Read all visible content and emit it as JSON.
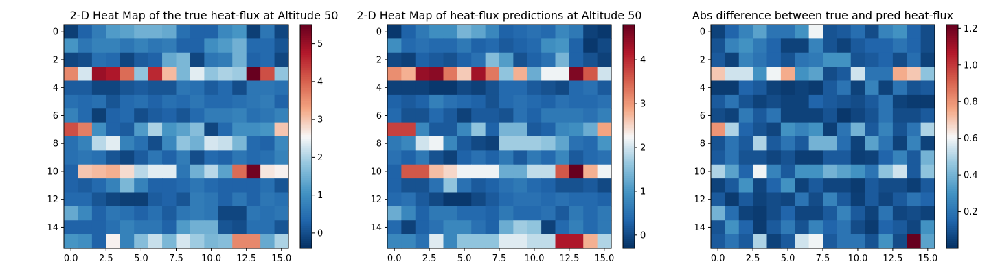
{
  "chart_data": [
    {
      "type": "heatmap",
      "title": "2-D Heat Map of the true heat-flux at Altitude 50",
      "colormap": "RdBu_r",
      "vmin": -0.4,
      "vmax": 5.5,
      "x_ticks": [
        "0.0",
        "2.5",
        "5.0",
        "7.5",
        "10.0",
        "12.5",
        "15.0"
      ],
      "x_tick_values": [
        0,
        2.5,
        5,
        7.5,
        10,
        12.5,
        15
      ],
      "y_ticks": [
        "0",
        "2",
        "4",
        "6",
        "8",
        "10",
        "12",
        "14"
      ],
      "y_tick_values": [
        0,
        2,
        4,
        6,
        8,
        10,
        12,
        14
      ],
      "colorbar_ticks": [
        "0",
        "1",
        "2",
        "3",
        "4",
        "5"
      ],
      "colorbar_tick_values": [
        0,
        1,
        2,
        3,
        4,
        5
      ],
      "matrix": [
        [
          -0.2,
          0.3,
          0.7,
          1.2,
          1.3,
          1.5,
          1.5,
          1.4,
          0.5,
          0.3,
          0.3,
          0.9,
          1.1,
          -0.2,
          0.6,
          -0.1
        ],
        [
          1.1,
          0.6,
          0.8,
          0.8,
          0.6,
          0.8,
          0.6,
          0.7,
          0.3,
          0.3,
          1.0,
          1.2,
          1.5,
          0.4,
          0.4,
          0.1
        ],
        [
          -0.1,
          0.0,
          0.5,
          0.4,
          -0.1,
          0.2,
          0.3,
          1.4,
          1.6,
          -0.1,
          0.6,
          0.7,
          1.5,
          0.3,
          0.4,
          -0.1
        ],
        [
          3.6,
          2.3,
          5.0,
          4.8,
          3.9,
          1.8,
          4.6,
          3.1,
          1.6,
          2.4,
          1.8,
          2.0,
          1.9,
          5.5,
          4.2,
          1.8
        ],
        [
          0.2,
          0.2,
          -0.1,
          -0.1,
          0.1,
          0.2,
          0.1,
          0.1,
          0.6,
          0.5,
          0.2,
          0.4,
          0.0,
          0.6,
          0.6,
          0.5
        ],
        [
          0.5,
          0.4,
          0.5,
          0.1,
          0.4,
          0.5,
          0.3,
          0.5,
          0.4,
          0.6,
          0.4,
          0.4,
          0.5,
          0.6,
          0.7,
          0.3
        ],
        [
          0.8,
          0.4,
          -0.2,
          0.3,
          0.4,
          0.0,
          0.2,
          0.3,
          0.1,
          0.4,
          0.7,
          0.7,
          0.8,
          0.5,
          0.6,
          0.8
        ],
        [
          4.2,
          3.7,
          1.0,
          0.3,
          0.2,
          1.2,
          2.0,
          1.1,
          1.3,
          1.7,
          -0.1,
          0.4,
          1.0,
          1.0,
          1.1,
          3.0
        ],
        [
          0.5,
          0.8,
          2.1,
          2.4,
          0.8,
          0.5,
          0.0,
          0.9,
          1.8,
          1.5,
          2.3,
          2.2,
          1.6,
          0.4,
          0.3,
          0.9
        ],
        [
          0.5,
          0.6,
          0.5,
          0.1,
          -0.1,
          0.2,
          0.6,
          0.3,
          0.7,
          0.0,
          0.4,
          0.3,
          0.6,
          0.4,
          0.5,
          0.8
        ],
        [
          0.3,
          3.0,
          3.1,
          3.2,
          2.8,
          2.1,
          2.4,
          2.4,
          0.6,
          1.5,
          2.1,
          1.3,
          3.9,
          5.4,
          2.7,
          2.6
        ],
        [
          0.3,
          0.2,
          0.4,
          0.8,
          1.6,
          0.8,
          0.3,
          0.3,
          0.4,
          0.6,
          0.4,
          0.3,
          0.3,
          0.3,
          0.5,
          0.1
        ],
        [
          0.4,
          0.4,
          0.1,
          -0.1,
          -0.2,
          -0.2,
          0.2,
          0.3,
          0.1,
          0.7,
          0.6,
          0.3,
          0.6,
          0.3,
          0.6,
          0.5
        ],
        [
          1.4,
          0.9,
          0.3,
          0.6,
          0.5,
          0.3,
          0.5,
          0.2,
          0.6,
          0.7,
          0.6,
          -0.1,
          -0.1,
          0.6,
          0.5,
          0.6
        ],
        [
          0.3,
          0.3,
          0.3,
          0.5,
          0.8,
          0.6,
          0.6,
          0.3,
          1.2,
          1.5,
          1.5,
          0.1,
          0.0,
          0.5,
          0.5,
          0.1
        ],
        [
          1.1,
          1.0,
          0.3,
          2.6,
          0.8,
          1.7,
          2.2,
          1.6,
          2.3,
          1.9,
          1.6,
          1.7,
          3.6,
          3.6,
          1.4,
          2.0
        ]
      ]
    },
    {
      "type": "heatmap",
      "title": "2-D Heat Map of heat-flux predictions at Altitude 50",
      "colormap": "RdBu_r",
      "vmin": -0.3,
      "vmax": 4.8,
      "x_ticks": [
        "0.0",
        "2.5",
        "5.0",
        "7.5",
        "10.0",
        "12.5",
        "15.0"
      ],
      "x_tick_values": [
        0,
        2.5,
        5,
        7.5,
        10,
        12.5,
        15
      ],
      "y_ticks": [
        "0",
        "2",
        "4",
        "6",
        "8",
        "10",
        "12",
        "14"
      ],
      "y_tick_values": [
        0,
        2,
        4,
        6,
        8,
        10,
        12,
        14
      ],
      "colorbar_ticks": [
        "0",
        "1",
        "2",
        "3",
        "4"
      ],
      "colorbar_tick_values": [
        0,
        1,
        2,
        3,
        4
      ],
      "matrix": [
        [
          -0.2,
          0.3,
          0.6,
          0.9,
          0.9,
          1.4,
          1.2,
          0.8,
          0.3,
          0.4,
          0.5,
          0.4,
          0.8,
          0.6,
          -0.1,
          -0.2
        ],
        [
          0.9,
          0.4,
          0.5,
          0.4,
          0.4,
          0.6,
          0.3,
          0.4,
          0.2,
          0.3,
          0.4,
          0.9,
          1.0,
          0.3,
          -0.2,
          0.0
        ],
        [
          0.0,
          -0.1,
          0.3,
          0.2,
          0.1,
          0.3,
          0.5,
          1.5,
          1.1,
          0.1,
          0.3,
          0.5,
          1.4,
          0.3,
          0.1,
          -0.1
        ],
        [
          3.1,
          2.8,
          4.4,
          4.5,
          3.3,
          2.6,
          4.3,
          3.3,
          1.6,
          2.8,
          1.3,
          2.2,
          2.2,
          4.6,
          3.6,
          2.0
        ],
        [
          -0.1,
          -0.1,
          -0.1,
          -0.2,
          -0.2,
          0.0,
          -0.1,
          0.1,
          0.4,
          0.4,
          0.2,
          0.1,
          0.0,
          0.4,
          0.5,
          0.2
        ],
        [
          0.3,
          0.2,
          0.3,
          0.7,
          0.5,
          0.4,
          0.3,
          0.1,
          0.4,
          0.5,
          0.4,
          0.3,
          0.5,
          0.4,
          0.4,
          0.5
        ],
        [
          0.4,
          0.1,
          0.1,
          0.4,
          0.2,
          -0.1,
          0.2,
          0.2,
          0.1,
          0.5,
          0.3,
          0.6,
          0.6,
          0.6,
          0.5,
          0.7
        ],
        [
          3.8,
          3.8,
          0.8,
          0.2,
          0.2,
          0.8,
          1.6,
          0.3,
          1.4,
          1.4,
          0.2,
          0.3,
          0.8,
          0.9,
          1.3,
          2.9
        ],
        [
          0.6,
          0.8,
          2.0,
          2.2,
          0.8,
          0.2,
          0.0,
          -0.1,
          1.7,
          1.7,
          1.7,
          1.6,
          1.2,
          0.5,
          0.4,
          1.0
        ],
        [
          0.5,
          0.3,
          0.6,
          0.1,
          -0.1,
          0.3,
          0.5,
          0.3,
          0.6,
          0.2,
          0.6,
          0.4,
          0.8,
          0.2,
          0.4,
          0.5
        ],
        [
          0.3,
          3.6,
          3.6,
          2.7,
          2.5,
          2.2,
          2.2,
          2.2,
          1.3,
          1.3,
          1.9,
          1.9,
          3.6,
          4.8,
          2.8,
          2.2
        ],
        [
          0.3,
          0.1,
          0.1,
          0.5,
          1.6,
          0.5,
          0.2,
          0.3,
          0.5,
          0.6,
          0.4,
          0.3,
          0.1,
          0.1,
          0.2,
          0.0
        ],
        [
          0.4,
          0.5,
          0.2,
          0.0,
          -0.2,
          -0.2,
          0.0,
          0.2,
          0.4,
          0.5,
          0.5,
          0.4,
          0.5,
          0.4,
          0.4,
          0.3
        ],
        [
          1.3,
          0.8,
          0.3,
          0.6,
          0.6,
          0.4,
          0.4,
          0.3,
          0.6,
          0.4,
          0.4,
          0.5,
          0.2,
          0.6,
          0.4,
          0.6
        ],
        [
          0.4,
          -0.1,
          0.3,
          0.5,
          0.8,
          0.8,
          0.5,
          0.3,
          1.3,
          1.7,
          1.6,
          -0.1,
          0.4,
          0.7,
          0.4,
          0.6
        ],
        [
          0.8,
          0.8,
          0.5,
          2.1,
          0.8,
          1.6,
          1.6,
          1.6,
          2.1,
          2.1,
          1.9,
          1.9,
          4.2,
          4.2,
          2.8,
          1.8
        ]
      ]
    },
    {
      "type": "heatmap",
      "title": "Abs difference between true and pred heat-flux",
      "colormap": "RdBu_r",
      "vmin": 0.0,
      "vmax": 1.22,
      "x_ticks": [
        "0.0",
        "2.5",
        "5.0",
        "7.5",
        "10.0",
        "12.5",
        "15.0"
      ],
      "x_tick_values": [
        0,
        2.5,
        5,
        7.5,
        10,
        12.5,
        15
      ],
      "y_ticks": [
        "0",
        "2",
        "4",
        "6",
        "8",
        "10",
        "12",
        "14"
      ],
      "y_tick_values": [
        0,
        2,
        4,
        6,
        8,
        10,
        12,
        14
      ],
      "colorbar_ticks": [
        "0.2",
        "0.4",
        "0.6",
        "0.8",
        "1.0",
        "1.2"
      ],
      "colorbar_tick_values": [
        0.2,
        0.4,
        0.6,
        0.8,
        1.0,
        1.2
      ],
      "matrix": [
        [
          0.05,
          0.15,
          0.25,
          0.35,
          0.2,
          0.2,
          0.3,
          0.6,
          0.1,
          0.12,
          0.18,
          0.08,
          0.25,
          0.3,
          0.15,
          0.08
        ],
        [
          0.1,
          0.25,
          0.3,
          0.22,
          0.15,
          0.05,
          0.05,
          0.25,
          0.1,
          0.05,
          0.12,
          0.15,
          0.15,
          0.2,
          0.15,
          0.08
        ],
        [
          0.12,
          0.05,
          0.25,
          0.2,
          0.15,
          0.1,
          0.2,
          0.22,
          0.3,
          0.3,
          0.1,
          0.12,
          0.15,
          0.08,
          0.18,
          0.05
        ],
        [
          0.7,
          0.55,
          0.55,
          0.3,
          0.6,
          0.75,
          0.3,
          0.35,
          0.08,
          0.12,
          0.55,
          0.2,
          0.2,
          0.75,
          0.7,
          0.45
        ],
        [
          0.03,
          0.03,
          0.15,
          0.12,
          0.05,
          0.03,
          0.05,
          0.03,
          0.12,
          0.2,
          0.05,
          0.25,
          0.05,
          0.2,
          0.1,
          0.12
        ],
        [
          0.12,
          0.2,
          0.1,
          0.05,
          0.08,
          0.05,
          0.05,
          0.15,
          0.12,
          0.1,
          0.08,
          0.12,
          0.2,
          0.05,
          0.03,
          0.03
        ],
        [
          0.08,
          0.05,
          0.22,
          0.12,
          0.2,
          0.05,
          0.05,
          0.05,
          0.1,
          0.02,
          0.06,
          0.1,
          0.2,
          0.08,
          0.08,
          0.12
        ],
        [
          0.8,
          0.5,
          0.15,
          0.1,
          0.06,
          0.3,
          0.25,
          0.3,
          0.04,
          0.2,
          0.4,
          0.12,
          0.25,
          0.1,
          0.2,
          0.5
        ],
        [
          0.1,
          0.2,
          0.12,
          0.5,
          0.12,
          0.2,
          0.12,
          0.4,
          0.4,
          0.18,
          0.05,
          0.35,
          0.2,
          0.05,
          0.25,
          0.05
        ],
        [
          0.12,
          0.2,
          0.1,
          0.1,
          0.06,
          0.1,
          0.04,
          0.04,
          0.12,
          0.12,
          0.04,
          0.05,
          0.15,
          0.25,
          0.12,
          0.4
        ],
        [
          0.5,
          0.35,
          0.15,
          0.6,
          0.25,
          0.12,
          0.3,
          0.3,
          0.4,
          0.35,
          0.3,
          0.2,
          0.45,
          0.55,
          0.12,
          0.45
        ],
        [
          0.05,
          0.12,
          0.3,
          0.06,
          0.15,
          0.3,
          0.05,
          0.12,
          0.06,
          0.06,
          0.03,
          0.12,
          0.08,
          0.08,
          0.04,
          0.12
        ],
        [
          0.12,
          0.03,
          0.12,
          0.05,
          0.08,
          0.06,
          0.2,
          0.08,
          0.25,
          0.12,
          0.04,
          0.12,
          0.06,
          0.12,
          0.2,
          0.15
        ],
        [
          0.4,
          0.18,
          0.05,
          0.03,
          0.08,
          0.15,
          0.06,
          0.06,
          0.12,
          0.25,
          0.12,
          0.05,
          0.2,
          0.06,
          0.08,
          0.05
        ],
        [
          0.1,
          0.3,
          0.15,
          0.03,
          0.12,
          0.22,
          0.1,
          0.25,
          0.15,
          0.2,
          0.08,
          0.03,
          0.15,
          0.12,
          0.06,
          0.3
        ],
        [
          0.12,
          0.2,
          0.12,
          0.5,
          0.05,
          0.12,
          0.55,
          0.6,
          0.12,
          0.2,
          0.2,
          0.1,
          0.3,
          0.08,
          1.22,
          0.35
        ]
      ]
    }
  ]
}
